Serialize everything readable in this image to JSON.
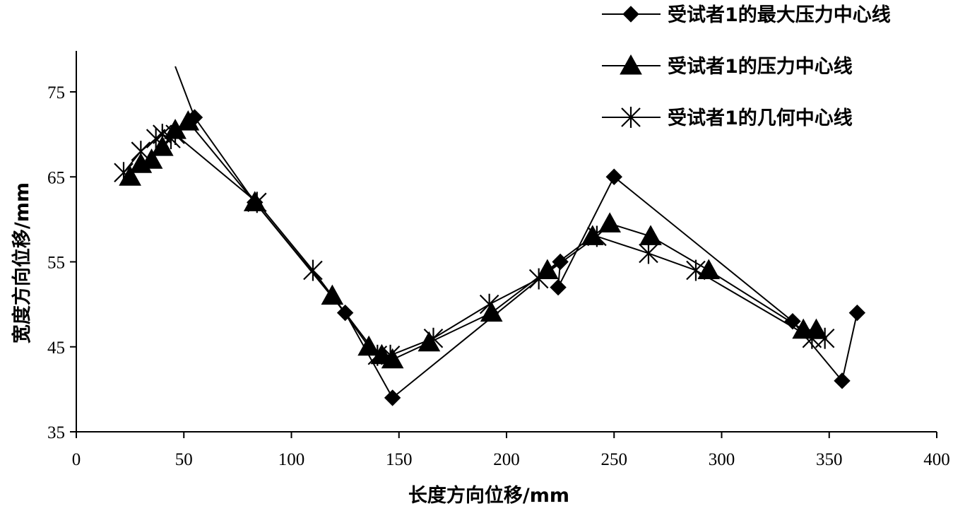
{
  "chart_data": {
    "type": "scatter",
    "title": "",
    "xlabel": "长度方向位移/mm",
    "ylabel": "宽度方向位移/mm",
    "xlim": [
      0,
      400
    ],
    "ylim": [
      35,
      80
    ],
    "xticks": [
      0,
      50,
      100,
      150,
      200,
      250,
      300,
      350,
      400
    ],
    "yticks": [
      35,
      45,
      55,
      65,
      75
    ],
    "grid": false,
    "legend_position": "top-right",
    "series": [
      {
        "name": "受试者1的最大压力中心线",
        "marker": "diamond-icon",
        "x": [
          46,
          55,
          83,
          125,
          147,
          225,
          224,
          250,
          333,
          356,
          363
        ],
        "y": [
          78,
          72,
          62,
          49,
          39,
          55,
          52,
          65,
          48,
          41,
          49
        ]
      },
      {
        "name": "受试者1的压力中心线",
        "marker": "triangle-icon",
        "x": [
          25,
          30,
          35,
          40,
          46,
          52,
          83,
          119,
          136,
          142,
          147,
          164,
          193,
          219,
          240,
          248,
          267,
          294,
          338,
          344
        ],
        "y": [
          65,
          66.5,
          67,
          68.5,
          70.5,
          71.5,
          62,
          51,
          45,
          44,
          43.5,
          45.5,
          49,
          54,
          58,
          59.5,
          58,
          54,
          47,
          47
        ]
      },
      {
        "name": "受试者1的几何中心线",
        "marker": "asterisk-icon",
        "x": [
          22,
          30,
          37,
          40,
          44,
          46,
          84,
          110,
          140,
          146,
          166,
          192,
          215,
          242,
          266,
          288,
          342,
          348
        ],
        "y": [
          65.5,
          68,
          69.5,
          70,
          69.5,
          70,
          62,
          54,
          44,
          44,
          46,
          50,
          53,
          58,
          56,
          54,
          46,
          46
        ]
      }
    ]
  }
}
